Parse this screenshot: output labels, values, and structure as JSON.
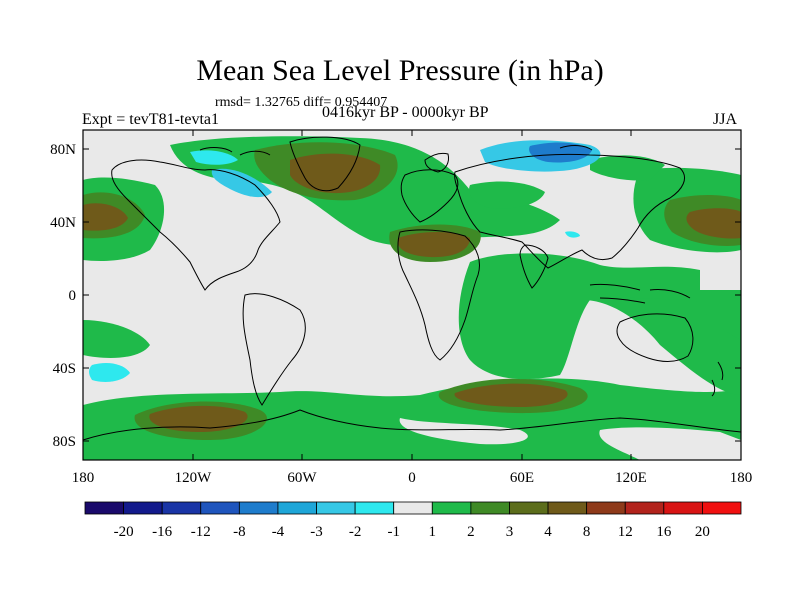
{
  "figure": {
    "title": "Mean Sea Level Pressure (in hPa)",
    "stats": "rmsd= 1.32765 diff= 0.954407",
    "experiment": "Expt = tevT81-tevta1",
    "period": "0416kyr BP - 0000kyr BP",
    "season": "JJA"
  },
  "axes": {
    "lon_ticks": [
      "180",
      "120W",
      "60W",
      "0",
      "60E",
      "120E",
      "180"
    ],
    "lat_ticks": [
      "80N",
      "40N",
      "0",
      "40S",
      "80S"
    ]
  },
  "colorbar": {
    "labels": [
      "-20",
      "-16",
      "-12",
      "-8",
      "-4",
      "-3",
      "-2",
      "-1",
      "1",
      "2",
      "3",
      "4",
      "8",
      "12",
      "16",
      "20"
    ],
    "colors": [
      "#1a0a6b",
      "#131a8c",
      "#1a35a6",
      "#1f55bd",
      "#1e7ccc",
      "#1ea6d8",
      "#36c8e6",
      "#2ee8ee",
      "#e9e9e9",
      "#1fba4a",
      "#3f8a26",
      "#5c6d1b",
      "#6f5a1a",
      "#8e3a1a",
      "#b2231c",
      "#d81414",
      "#f01010"
    ]
  },
  "colors": {
    "neutral": "#e9e9e9",
    "pos_weak": "#1fba4a",
    "pos_mid": "#3f8a26",
    "pos_strong": "#6f5a1a",
    "neg_weak": "#2ee8ee",
    "neg_mid": "#36c8e6",
    "neg_strong": "#1e7ccc",
    "coast": "#000000"
  }
}
